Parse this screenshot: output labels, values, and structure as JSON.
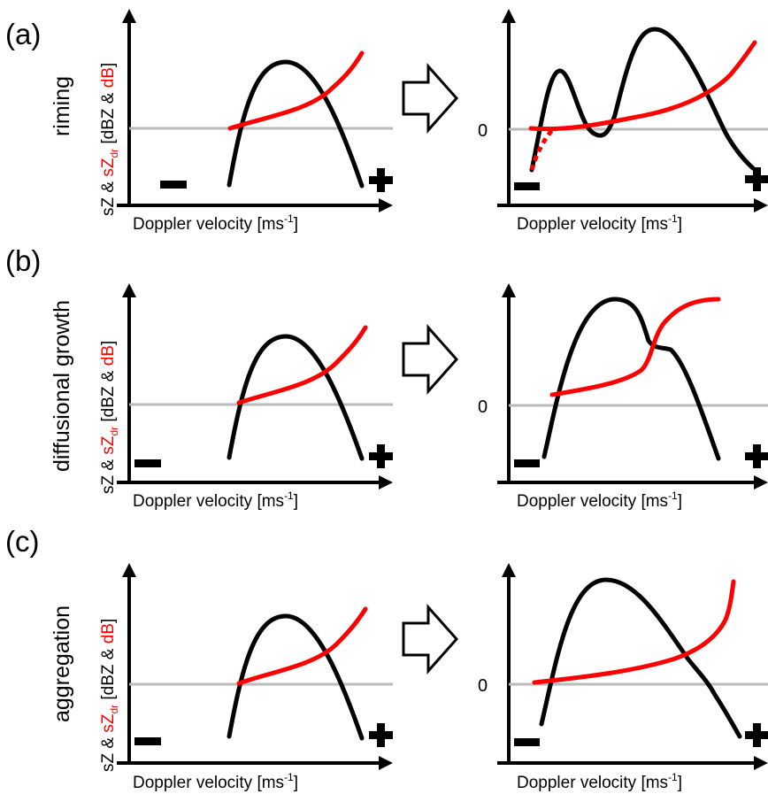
{
  "colors": {
    "spectrum": "#000000",
    "sZdr": "#ff0000",
    "zero_line": "#bbbbbb",
    "arrow_fill": "#ffffff"
  },
  "rows": [
    {
      "letter": "(a)",
      "process": "riming"
    },
    {
      "letter": "(b)",
      "process": "diffusional growth"
    },
    {
      "letter": "(c)",
      "process": "aggregation"
    }
  ],
  "axis": {
    "ylabel_parts": {
      "sz": "sZ & ",
      "szdr": "sZ",
      "szdr_sub": "dr",
      "units_open": " [dBZ & ",
      "db": "dB",
      "units_close": "]"
    },
    "xlabel_parts": {
      "main": "Doppler velocity [ms",
      "sup": "-1",
      "close": "]"
    },
    "zero_label": "0",
    "minus_sign": "−",
    "plus_sign": "+"
  }
}
